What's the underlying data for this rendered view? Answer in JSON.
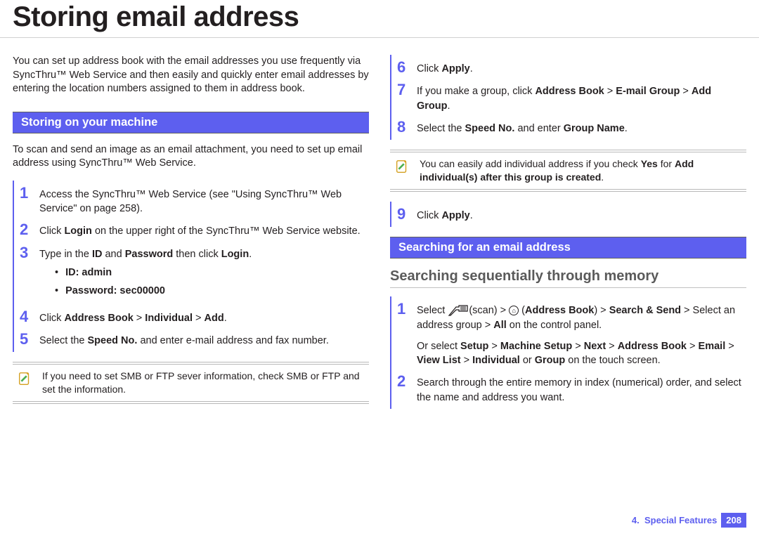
{
  "page": {
    "title": "Storing email address",
    "intro": "You can set up address book with the email addresses you use frequently via SyncThru™ Web Service and then easily and quickly enter email addresses by entering the location numbers assigned to them in address book."
  },
  "colors": {
    "accent": "#5d5fef",
    "heading_gray": "#5a5a5a",
    "border": "#b8b8b8"
  },
  "section_storing": {
    "heading": "Storing on your machine",
    "para": "To scan and send an image as an email attachment, you need to set up email address using SyncThru™ Web Service.",
    "steps_a": [
      {
        "n": "1",
        "html": "Access the SyncThru™ Web Service (see \"Using SyncThru™ Web Service\" on page 258)."
      },
      {
        "n": "2",
        "html": "Click <b>Login</b> on the upper right of the SyncThru™ Web Service website."
      },
      {
        "n": "3",
        "html": "Type in the <b>ID</b> and <b>Password</b> then click <b>Login</b>.",
        "bullets": [
          "ID: admin",
          "Password: sec00000"
        ]
      },
      {
        "n": "4",
        "html": "Click <b>Address Book</b> > <b>Individual</b> > <b>Add</b>."
      },
      {
        "n": "5",
        "html": "Select the <b>Speed No.</b> and enter e-mail address and fax number."
      }
    ],
    "note_a": "If you need to set SMB or FTP sever information, check SMB or FTP and set the information.",
    "steps_b": [
      {
        "n": "6",
        "html": "Click <b>Apply</b>."
      },
      {
        "n": "7",
        "html": "If you make a group, click <b>Address Book</b> > <b>E-mail Group</b> > <b>Add Group</b>."
      },
      {
        "n": "8",
        "html": "Select the <b>Speed No.</b> and enter <b>Group Name</b>."
      }
    ],
    "note_b": "You can easily add individual address if you check <b>Yes</b> for <b>Add individual(s) after this group is created</b>.",
    "steps_c": [
      {
        "n": "9",
        "html": "Click <b>Apply</b>."
      }
    ]
  },
  "section_searching": {
    "heading": "Searching for an email address",
    "sub": "Searching sequentially through memory",
    "steps": [
      {
        "n": "1",
        "html": "Select {SCAN}(scan) > {ADDR} (<b>Address Book</b>) > <b>Search & Send</b> > Select an address group > <b>All</b> on the control panel.",
        "extra": "Or select <b>Setup</b> > <b>Machine Setup</b> > <b>Next</b> > <b>Address Book</b> > <b>Email</b> > <b>View List</b> > <b>Individual</b> or <b>Group</b> on the touch screen."
      },
      {
        "n": "2",
        "html": "Search through the entire memory in index (numerical) order, and select the name and address you want."
      }
    ]
  },
  "footer": {
    "chapter_num": "4.",
    "chapter_label": "Special Features",
    "page_num": "208"
  }
}
